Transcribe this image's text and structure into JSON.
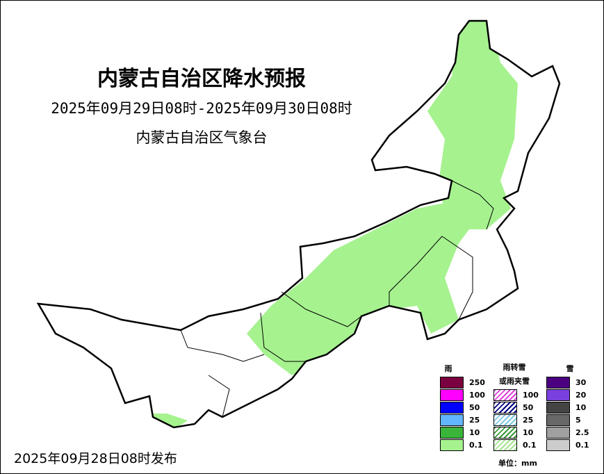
{
  "title": "内蒙古自治区降水预报",
  "period": "2025年09月29日08时-2025年09月30日08时",
  "issuer": "内蒙古自治区气象台",
  "issued": "2025年09月28日08时发布",
  "legend": {
    "rain": {
      "label": "雨",
      "levels": [
        {
          "value": "250",
          "color": "#7a0040"
        },
        {
          "value": "100",
          "color": "#ff00ff"
        },
        {
          "value": "50",
          "color": "#0000ff"
        },
        {
          "value": "25",
          "color": "#62b6ff"
        },
        {
          "value": "10",
          "color": "#3ab53a"
        },
        {
          "value": "0.1",
          "color": "#a6f28f"
        }
      ]
    },
    "mixed": {
      "label_line1": "雨转雪",
      "label_line2": "或雨夹雪",
      "levels": [
        {
          "value": "100",
          "color": "#e040e0"
        },
        {
          "value": "50",
          "color": "#000080"
        },
        {
          "value": "25",
          "color": "#80c8e0"
        },
        {
          "value": "10",
          "color": "#3a9a3a"
        },
        {
          "value": "0.1",
          "color": "#a6e28f"
        }
      ]
    },
    "snow": {
      "label": "雪",
      "levels": [
        {
          "value": "30",
          "color": "#4b0080"
        },
        {
          "value": "20",
          "color": "#7b40e0"
        },
        {
          "value": "10",
          "color": "#444444"
        },
        {
          "value": "5",
          "color": "#686868"
        },
        {
          "value": "2.5",
          "color": "#a0a0a0"
        },
        {
          "value": "0.1",
          "color": "#cccccc"
        }
      ]
    },
    "unit": "单位：mm"
  },
  "forecast_color": "#a6f28f"
}
